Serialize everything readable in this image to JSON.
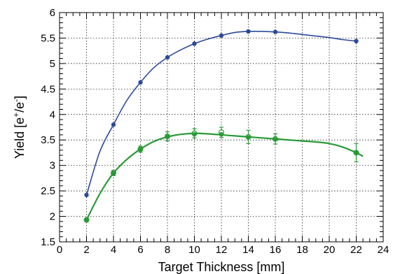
{
  "chart_data": {
    "type": "line",
    "title": "",
    "xlabel": "Target Thickness [mm]",
    "ylabel": {
      "main": "Yield [e",
      "sup1": "+",
      "mid": "/e",
      "sup2": "-",
      "end": "]"
    },
    "xlim": [
      0,
      24
    ],
    "ylim": [
      1.5,
      6
    ],
    "xticks": [
      0,
      2,
      4,
      6,
      8,
      10,
      12,
      14,
      16,
      18,
      20,
      22,
      24
    ],
    "yticks": [
      1.5,
      2,
      2.5,
      3,
      3.5,
      4,
      4.5,
      5,
      5.5,
      6
    ],
    "ytick_labels": [
      "1.5",
      "2",
      "2.5",
      "3",
      "3.5",
      "4",
      "4.5",
      "5",
      "5.5",
      "6"
    ],
    "grid": true,
    "series": [
      {
        "color": "#2c4a9b",
        "marker": "filled-circle",
        "x": [
          2,
          4,
          6,
          8,
          10,
          12,
          14,
          16,
          22
        ],
        "y": [
          2.42,
          3.8,
          4.63,
          5.12,
          5.39,
          5.55,
          5.63,
          5.62,
          5.44
        ],
        "curve": {
          "x": [
            2,
            3,
            4,
            5,
            6,
            7,
            8,
            9,
            10,
            11,
            12,
            13,
            14,
            15,
            16,
            17,
            18,
            19,
            20,
            21,
            22
          ],
          "y": [
            2.42,
            3.28,
            3.8,
            4.28,
            4.63,
            4.92,
            5.12,
            5.27,
            5.39,
            5.48,
            5.55,
            5.61,
            5.63,
            5.63,
            5.62,
            5.6,
            5.57,
            5.54,
            5.51,
            5.47,
            5.44
          ]
        }
      },
      {
        "color": "#2a9a37",
        "marker": "open-circle",
        "x": [
          2,
          4,
          6,
          8,
          10,
          12,
          14,
          16,
          22
        ],
        "y": [
          1.93,
          2.85,
          3.32,
          3.57,
          3.63,
          3.65,
          3.56,
          3.52,
          3.25
        ],
        "yerr": [
          0.03,
          0.05,
          0.06,
          0.09,
          0.09,
          0.1,
          0.13,
          0.1,
          0.18
        ]
      },
      {
        "color": "#2a9a37",
        "marker": "filled-circle",
        "x": [
          2,
          4,
          6,
          8,
          10,
          12,
          14,
          16,
          22
        ],
        "y": [
          1.93,
          2.85,
          3.32,
          3.57,
          3.61,
          3.61,
          3.55,
          3.51,
          3.25
        ],
        "curve": {
          "x": [
            2,
            3,
            4,
            5,
            6,
            7,
            8,
            9,
            10,
            11,
            12,
            13,
            14,
            15,
            16,
            17,
            18,
            19,
            20,
            21,
            22,
            22.5
          ],
          "y": [
            1.93,
            2.45,
            2.85,
            3.12,
            3.32,
            3.47,
            3.56,
            3.61,
            3.63,
            3.62,
            3.6,
            3.58,
            3.56,
            3.54,
            3.52,
            3.5,
            3.48,
            3.46,
            3.43,
            3.36,
            3.25,
            3.18
          ]
        }
      }
    ]
  }
}
